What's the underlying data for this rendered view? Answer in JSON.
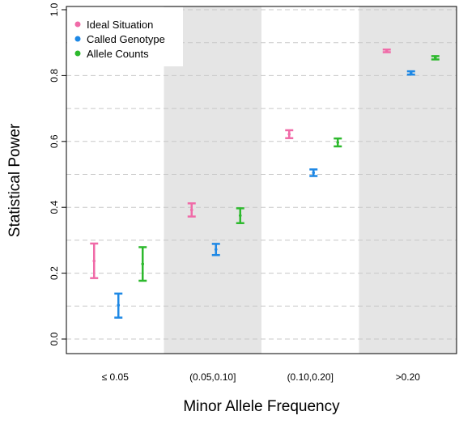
{
  "chart_data": {
    "type": "errorbar",
    "title": "",
    "xlabel": "Minor Allele Frequency",
    "ylabel": "Statistical Power",
    "ylim": [
      0,
      1
    ],
    "yticks": [
      "0.0",
      "0.2",
      "0.4",
      "0.6",
      "0.8",
      "1.0"
    ],
    "categories": [
      "≤ 0.05",
      "(0.05,0.10]",
      "(0.10,0.20]",
      ">0.20"
    ],
    "shaded_categories": [
      1,
      3
    ],
    "grid": "horizontal dashed",
    "legend_position": "top-left",
    "series": [
      {
        "name": "Ideal Situation",
        "color": "#f06ba8",
        "mean": [
          0.237,
          0.392,
          0.622,
          0.875
        ],
        "lower": [
          0.185,
          0.372,
          0.61,
          0.871
        ],
        "upper": [
          0.29,
          0.412,
          0.634,
          0.879
        ]
      },
      {
        "name": "Called Genotype",
        "color": "#1e88e5",
        "mean": [
          0.103,
          0.272,
          0.505,
          0.808
        ],
        "lower": [
          0.065,
          0.255,
          0.495,
          0.803
        ],
        "upper": [
          0.138,
          0.289,
          0.515,
          0.813
        ]
      },
      {
        "name": "Allele Counts",
        "color": "#2db92d",
        "mean": [
          0.228,
          0.375,
          0.597,
          0.854
        ],
        "lower": [
          0.177,
          0.352,
          0.585,
          0.849
        ],
        "upper": [
          0.279,
          0.397,
          0.609,
          0.859
        ]
      }
    ]
  }
}
